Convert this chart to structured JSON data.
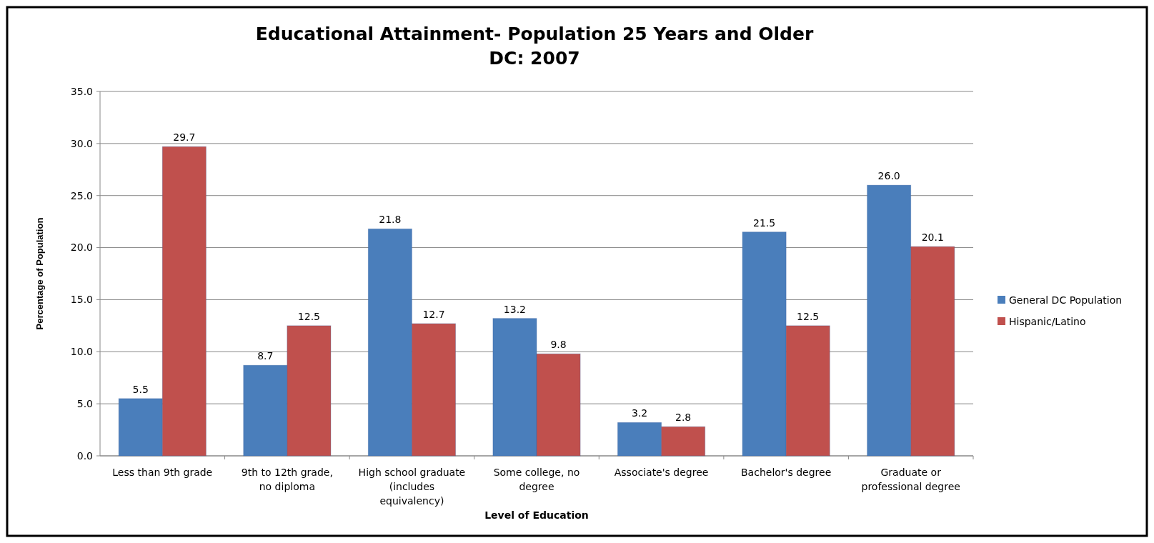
{
  "chart_data": {
    "type": "bar",
    "title": "Educational Attainment- Population 25 Years and Older\nDC: 2007",
    "xlabel": "Level of Education",
    "ylabel": "Percentage of Population",
    "categories": [
      "Less than 9th grade",
      "9th to 12th grade, no diploma",
      "High school graduate (includes equivalency)",
      "Some college, no degree",
      "Associate's degree",
      "Bachelor's degree",
      "Graduate or professional degree"
    ],
    "series": [
      {
        "name": "General DC Population",
        "color": "#4a7ebb",
        "values": [
          5.5,
          8.7,
          21.8,
          13.2,
          3.2,
          21.5,
          26.0
        ],
        "value_labels": [
          "5.5",
          "8.7",
          "21.8",
          "13.2",
          "3.2",
          "21.5",
          "26.0"
        ]
      },
      {
        "name": "Hispanic/Latino",
        "color": "#c0504d",
        "values": [
          29.7,
          12.5,
          12.7,
          9.8,
          2.8,
          12.5,
          20.1
        ],
        "value_labels": [
          "29.7",
          "12.5",
          "12.7",
          "9.8",
          "2.8",
          "12.5",
          "20.1"
        ]
      }
    ],
    "ylim": [
      0,
      35
    ],
    "yticks": [
      {
        "value": 0,
        "label": "0.0"
      },
      {
        "value": 5,
        "label": "5.0"
      },
      {
        "value": 10,
        "label": "10.0"
      },
      {
        "value": 15,
        "label": "15.0"
      },
      {
        "value": 20,
        "label": "20.0"
      },
      {
        "value": 25,
        "label": "25.0"
      },
      {
        "value": 30,
        "label": "30.0"
      },
      {
        "value": 35,
        "label": "35.0"
      }
    ],
    "grid": "y",
    "legend": "right"
  }
}
